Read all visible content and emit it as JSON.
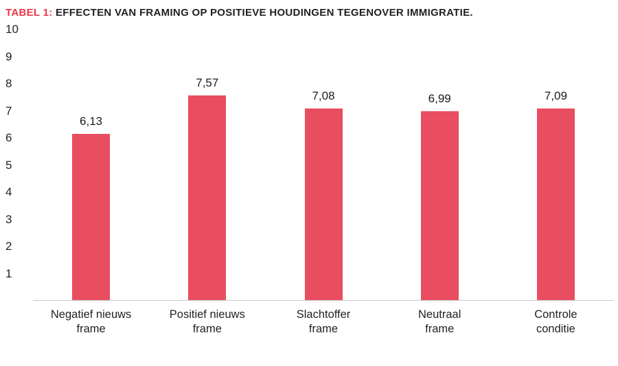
{
  "title": {
    "prefix": "TABEL 1:",
    "rest": " EFFECTEN VAN FRAMING OP POSITIEVE HOUDINGEN TEGENOVER IMMIGRATIE."
  },
  "chart_data": {
    "type": "bar",
    "title": "TABEL 1: EFFECTEN VAN FRAMING OP POSITIEVE HOUDINGEN TEGENOVER IMMIGRATIE.",
    "categories": [
      "Negatief nieuws\nframe",
      "Positief nieuws\nframe",
      "Slachtoffer\nframe",
      "Neutraal\nframe",
      "Controle\nconditie"
    ],
    "values": [
      6.13,
      7.57,
      7.08,
      6.99,
      7.09
    ],
    "value_labels": [
      "6,13",
      "7,57",
      "7,08",
      "6,99",
      "7,09"
    ],
    "xlabel": "",
    "ylabel": "",
    "ylim": [
      0,
      10
    ],
    "yticks": [
      1,
      2,
      3,
      4,
      5,
      6,
      7,
      8,
      9,
      10
    ],
    "grid": false,
    "legend": null,
    "bar_color": "#e84e5f",
    "accent_color": "#e8374a",
    "axis_line_color": "#c9c9c9"
  }
}
